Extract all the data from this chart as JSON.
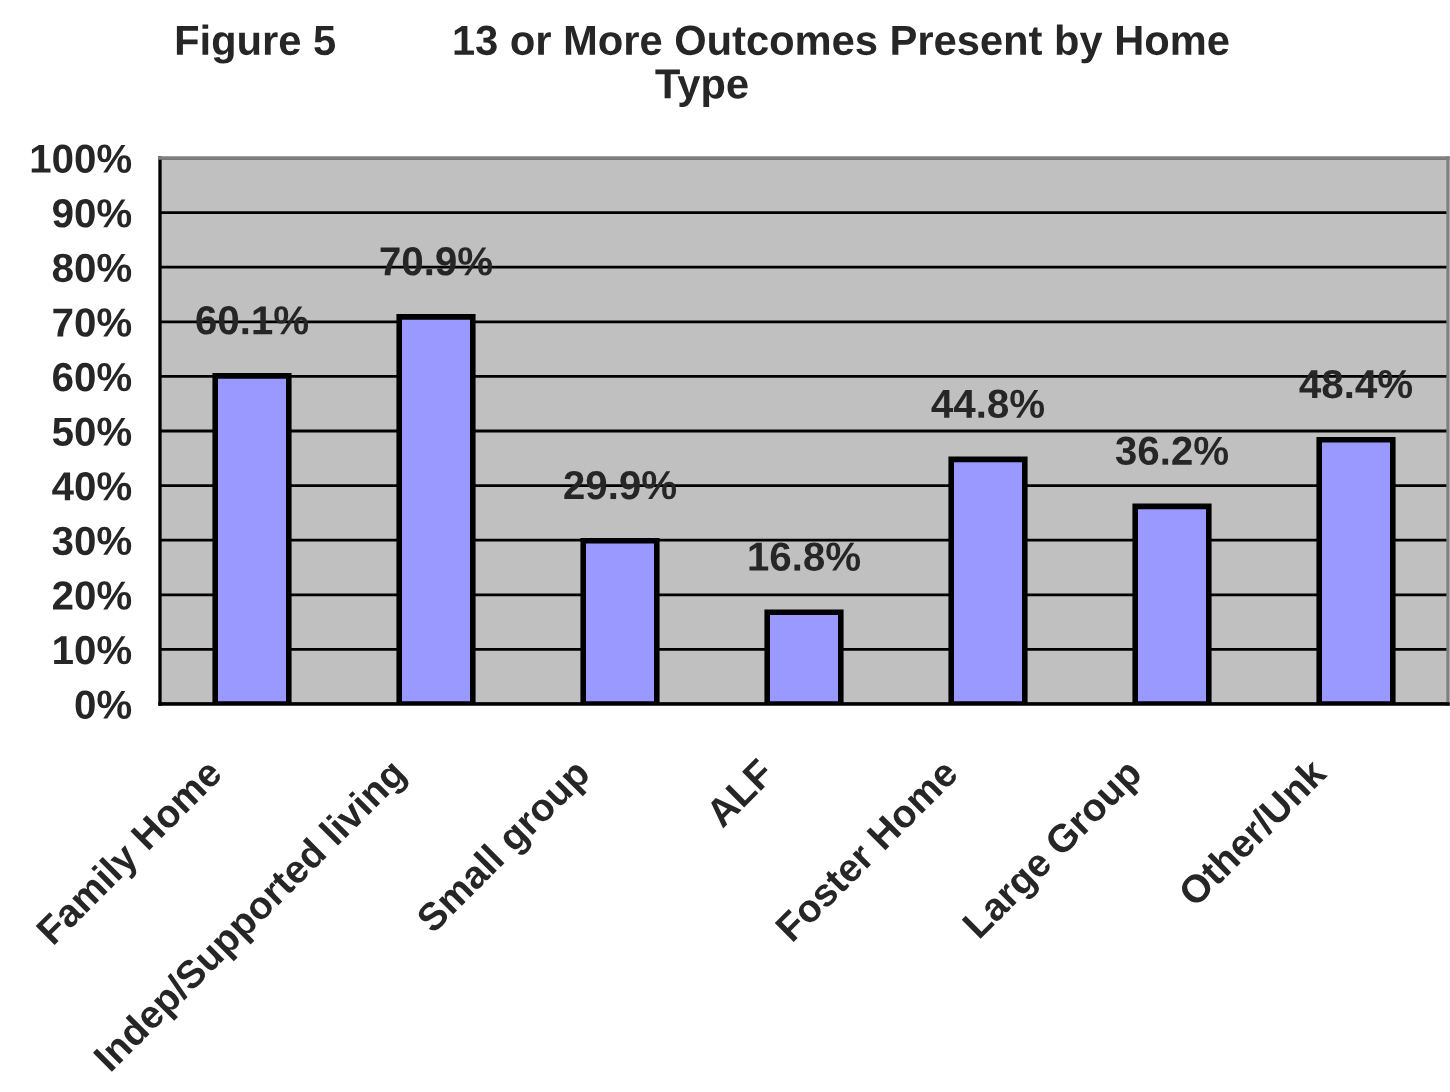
{
  "chart_data": {
    "type": "bar",
    "title": "Figure 5          13 or More Outcomes Present by Home Type",
    "categories": [
      "Family Home",
      "Indep/Supported living",
      "Small group",
      "ALF",
      "Foster Home",
      "Large Group",
      "Other/Unk"
    ],
    "values": [
      60.1,
      70.9,
      29.9,
      16.8,
      44.8,
      36.2,
      48.4
    ],
    "value_labels": [
      "60.1%",
      "70.9%",
      "29.9%",
      "16.8%",
      "44.8%",
      "36.2%",
      "48.4%"
    ],
    "color": "#9999ff",
    "ylim": [
      0,
      100
    ],
    "yticks": [
      {
        "value": 0,
        "label": "0%"
      },
      {
        "value": 10,
        "label": "10%"
      },
      {
        "value": 20,
        "label": "20%"
      },
      {
        "value": 30,
        "label": "30%"
      },
      {
        "value": 40,
        "label": "40%"
      },
      {
        "value": 50,
        "label": "50%"
      },
      {
        "value": 60,
        "label": "60%"
      },
      {
        "value": 70,
        "label": "70%"
      },
      {
        "value": 80,
        "label": "80%"
      },
      {
        "value": 90,
        "label": "90%"
      },
      {
        "value": 100,
        "label": "100%"
      }
    ],
    "grid": "y"
  }
}
